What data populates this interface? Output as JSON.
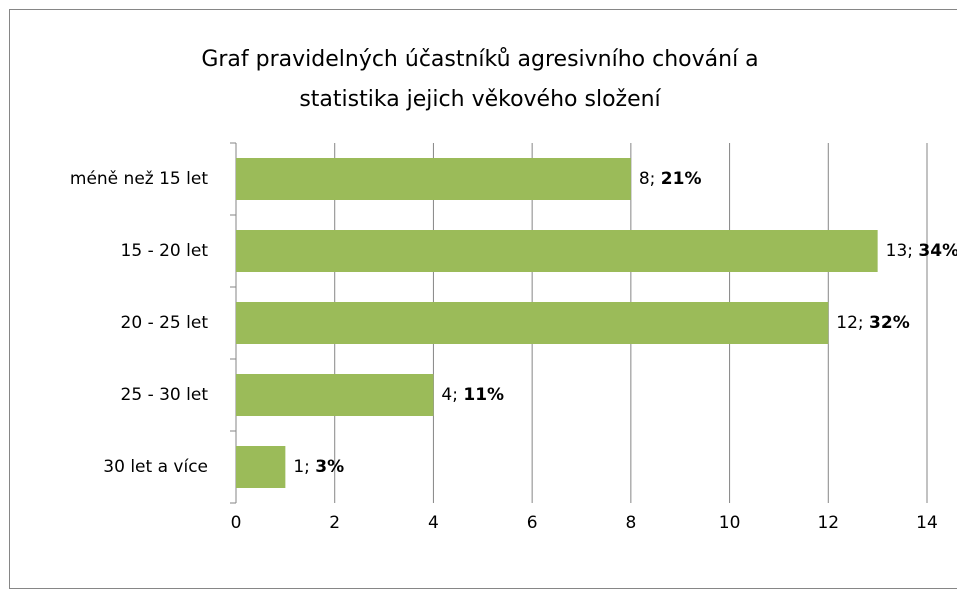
{
  "chart_data": {
    "type": "bar",
    "orientation": "horizontal",
    "title": "Graf pravidelných účastníků agresivního chování a statistika jejich věkového složení",
    "categories": [
      "méně než 15 let",
      "15 - 20 let",
      "20 - 25 let",
      "25 - 30 let",
      "30 let a více"
    ],
    "values": [
      8,
      13,
      12,
      4,
      1
    ],
    "value_labels": [
      "8; 21%",
      "13; 34%",
      "12; 32%",
      "4; 11%",
      "1; 3%"
    ],
    "color": "#9bbb59",
    "xlim": [
      0,
      14
    ],
    "xticks": [
      0,
      2,
      4,
      6,
      8,
      10,
      12,
      14
    ],
    "grid": true
  }
}
